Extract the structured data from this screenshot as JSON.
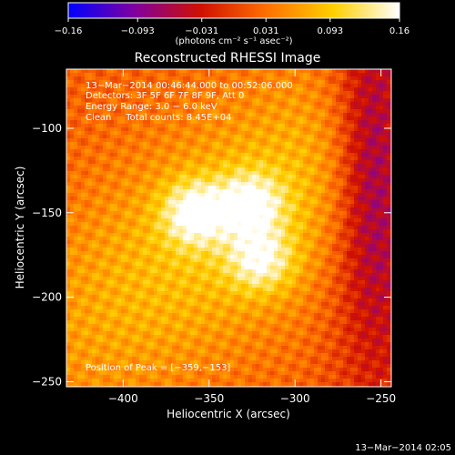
{
  "chart_data": {
    "type": "heatmap",
    "title": "Reconstructed RHESSI Image",
    "xlabel": "Heliocentric X (arcsec)",
    "ylabel": "Heliocentric Y (arcsec)",
    "xlim": [
      -433,
      -244
    ],
    "ylim": [
      -253,
      -65
    ],
    "x_ticks": [
      -400,
      -350,
      -300,
      -250
    ],
    "x_tick_labels": [
      "−400",
      "−350",
      "−300",
      "−250"
    ],
    "y_ticks": [
      -100,
      -150,
      -200,
      -250
    ],
    "y_tick_labels": [
      "−100",
      "−150",
      "−200",
      "−250"
    ],
    "colorbar": {
      "min": -0.16,
      "max": 0.16,
      "ticks": [
        -0.16,
        -0.093,
        -0.031,
        0.031,
        0.093,
        0.16
      ],
      "tick_labels": [
        "−0.16",
        "−0.093",
        "−0.031",
        "0.031",
        "0.093",
        "0.16"
      ],
      "label": "(photons cm⁻² s⁻¹ asec⁻²)",
      "colors": [
        "#0000ff",
        "#8000a0",
        "#d01000",
        "#ff7000",
        "#ffd000",
        "#ffffff"
      ]
    },
    "annotations": {
      "time_range": "13−Mar−2014 00:46:44.000 to 00:52:06.000",
      "detectors": "Detectors: 3F 5F 6F 7F 8F 9F, Att 0",
      "energy": "Energy Range: 3.0 − 6.0 keV",
      "method": "Clean     Total counts: 8.45E+04",
      "peak": "Position of Peak = [−359,−153]"
    },
    "peak": [
      -359,
      -153
    ],
    "sources": [
      {
        "x": -358,
        "y": -150,
        "value": 0.16
      },
      {
        "x": -326,
        "y": -145,
        "value": 0.15
      },
      {
        "x": -320,
        "y": -178,
        "value": 0.14
      }
    ],
    "timestamp": "13−Mar−2014 02:05"
  }
}
